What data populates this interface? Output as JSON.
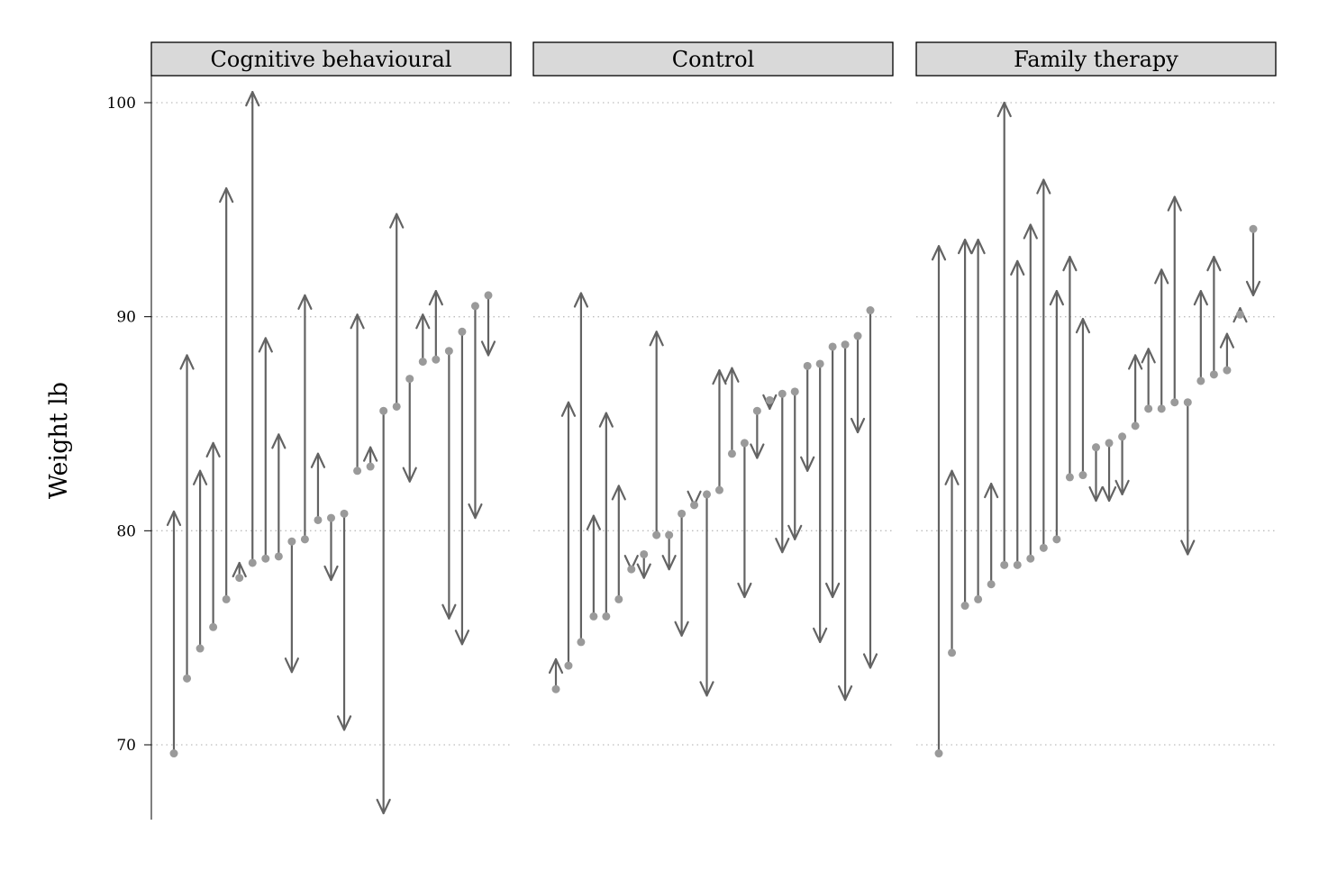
{
  "chart_data": {
    "type": "arrow-dot",
    "ylabel": "Weight lb",
    "ylim": [
      66.5,
      101.3
    ],
    "yticks": [
      70,
      80,
      90,
      100
    ],
    "grid": true,
    "colors": {
      "line": "#636363",
      "point": "#9a9a9a",
      "strip_fill": "#d9d9d9",
      "grid": "#bdbdbd"
    },
    "panels": [
      {
        "name": "Cognitive behavioural",
        "before": [
          69.6,
          73.1,
          74.5,
          75.5,
          76.8,
          77.8,
          78.5,
          78.7,
          78.8,
          79.5,
          79.6,
          80.5,
          80.6,
          80.8,
          82.8,
          83.0,
          85.6,
          85.8,
          87.1,
          87.9,
          88.0,
          88.4,
          89.3,
          90.5,
          91.0
        ],
        "after": [
          80.9,
          88.2,
          82.8,
          84.1,
          96.0,
          78.5,
          100.5,
          89.0,
          84.5,
          73.4,
          91.0,
          83.6,
          77.7,
          70.7,
          90.1,
          83.9,
          66.8,
          94.8,
          82.3,
          90.1,
          91.2,
          75.9,
          74.7,
          80.6,
          88.2
        ]
      },
      {
        "name": "Control",
        "before": [
          72.6,
          73.7,
          74.8,
          76.0,
          76.0,
          76.8,
          78.2,
          78.9,
          79.8,
          79.8,
          80.8,
          81.2,
          81.7,
          81.9,
          83.6,
          84.1,
          85.6,
          86.1,
          86.4,
          86.5,
          87.7,
          87.8,
          88.6,
          88.7,
          89.1,
          90.3
        ],
        "after": [
          74.0,
          86.0,
          91.1,
          80.7,
          85.5,
          82.1,
          78.2,
          77.8,
          89.3,
          78.2,
          75.1,
          81.2,
          72.3,
          87.5,
          87.6,
          76.9,
          83.4,
          85.7,
          79.0,
          79.6,
          82.8,
          74.8,
          76.9,
          72.1,
          84.6,
          73.6
        ]
      },
      {
        "name": "Family therapy",
        "before": [
          69.6,
          74.3,
          76.5,
          76.8,
          77.5,
          78.4,
          78.4,
          78.7,
          79.2,
          79.6,
          82.5,
          82.6,
          83.9,
          84.1,
          84.4,
          84.9,
          85.7,
          85.7,
          86.0,
          86.0,
          87.0,
          87.3,
          87.5,
          90.1,
          94.1
        ],
        "after": [
          93.3,
          82.8,
          93.6,
          93.6,
          82.2,
          100.0,
          92.6,
          94.3,
          96.4,
          91.2,
          92.8,
          89.9,
          81.4,
          81.4,
          81.7,
          88.2,
          88.5,
          92.2,
          95.6,
          78.9,
          91.2,
          92.8,
          89.2,
          90.4,
          91.0
        ]
      }
    ]
  }
}
